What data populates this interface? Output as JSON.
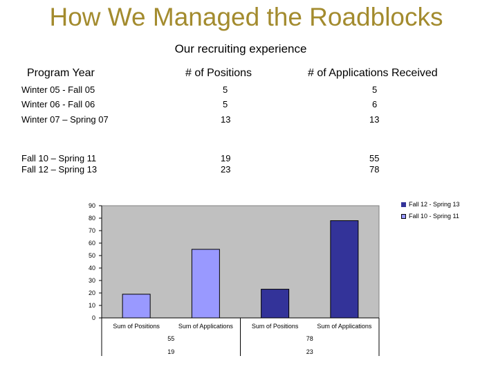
{
  "title": "How We Managed the Roadblocks",
  "subtitle": "Our recruiting experience",
  "table": {
    "headers": [
      "Program Year",
      "# of Positions",
      "# of Applications Received"
    ],
    "rows": [
      [
        "Winter 05 - Fall 05",
        "5",
        "5"
      ],
      [
        "Winter 06 - Fall 06",
        "5",
        "6"
      ],
      [
        "Winter 07 – Spring 07",
        "13",
        "13"
      ],
      [
        "Fall 10 – Spring 11",
        "19",
        "55"
      ],
      [
        "Fall 12 – Spring 13",
        "23",
        "78"
      ]
    ]
  },
  "chart_data": {
    "type": "bar",
    "ylim": [
      0,
      90
    ],
    "yticks": [
      "0",
      "10",
      "20",
      "30",
      "40",
      "50",
      "60",
      "70",
      "80",
      "90"
    ],
    "categories": [
      "Sum of Positions",
      "Sum of Applications",
      "Sum of Positions",
      "Sum of Applications"
    ],
    "series": [
      {
        "name": "Fall 10 - Spring 11",
        "color": "#9999ff",
        "values": [
          19,
          55,
          null,
          null
        ]
      },
      {
        "name": "Fall 12 - Spring 13",
        "color": "#333399",
        "values": [
          null,
          null,
          23,
          78
        ]
      }
    ],
    "legend": [
      "Fall 12 - Spring 13",
      "Fall 10 - Spring 11"
    ],
    "data_table": [
      [
        "55",
        "78"
      ],
      [
        "19",
        "23"
      ]
    ],
    "grid": false,
    "plot_background": "#c0c0c0",
    "legend_position": "top-right"
  }
}
